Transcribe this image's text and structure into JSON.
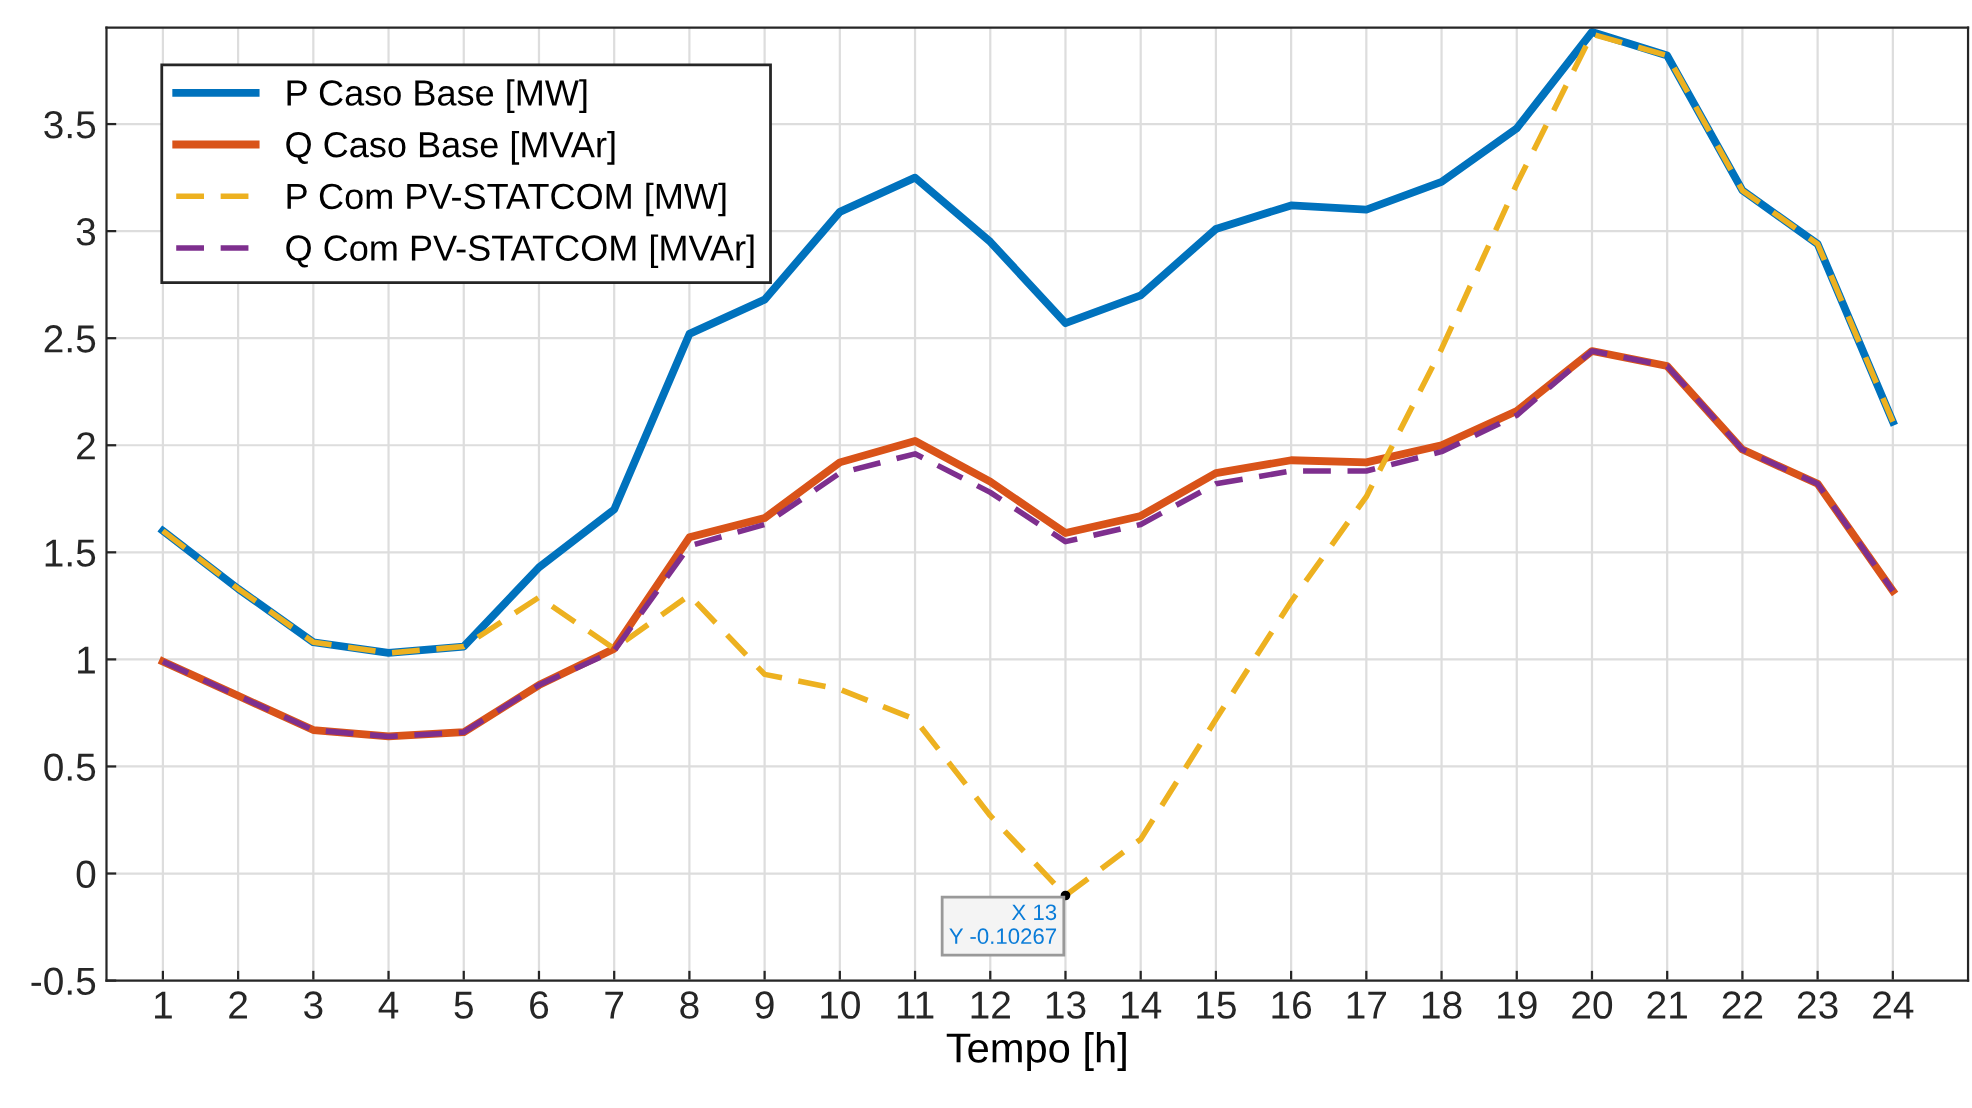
{
  "chart_data": {
    "type": "line",
    "xlabel": "Tempo [h]",
    "x": [
      1,
      2,
      3,
      4,
      5,
      6,
      7,
      8,
      9,
      10,
      11,
      12,
      13,
      14,
      15,
      16,
      17,
      18,
      19,
      20,
      21,
      22,
      23,
      24
    ],
    "xlim": [
      0.25,
      25
    ],
    "xticks": [
      1,
      2,
      3,
      4,
      5,
      6,
      7,
      8,
      9,
      10,
      11,
      12,
      13,
      14,
      15,
      16,
      17,
      18,
      19,
      20,
      21,
      22,
      23,
      24
    ],
    "ylim": [
      -0.5,
      3.95
    ],
    "yticks": [
      -0.5,
      0,
      0.5,
      1,
      1.5,
      2,
      2.5,
      3,
      3.5
    ],
    "grid": true,
    "legend": "top left",
    "series": [
      {
        "name": "P Caso Base [MW]",
        "color": "#0072bd",
        "line_style": "solid",
        "values": [
          1.6,
          1.33,
          1.08,
          1.03,
          1.06,
          1.43,
          1.7,
          2.52,
          2.68,
          3.09,
          3.25,
          2.95,
          2.57,
          2.7,
          3.01,
          3.12,
          3.1,
          3.23,
          3.48,
          3.93,
          3.82,
          3.19,
          2.94,
          2.11
        ]
      },
      {
        "name": "Q Caso Base [MVAr]",
        "color": "#d95319",
        "line_style": "solid",
        "values": [
          0.99,
          0.83,
          0.67,
          0.64,
          0.66,
          0.88,
          1.05,
          1.57,
          1.66,
          1.92,
          2.02,
          1.83,
          1.59,
          1.67,
          1.87,
          1.93,
          1.92,
          2.0,
          2.16,
          2.44,
          2.37,
          1.98,
          1.82,
          1.32
        ]
      },
      {
        "name": "P Com PV-STATCOM [MW]",
        "color": "#edb120",
        "line_style": "dashed",
        "values": [
          1.6,
          1.33,
          1.08,
          1.03,
          1.06,
          1.29,
          1.05,
          1.3,
          0.93,
          0.86,
          0.72,
          0.27,
          -0.10267,
          0.16,
          0.72,
          1.27,
          1.76,
          2.45,
          3.22,
          3.92,
          3.82,
          3.19,
          2.94,
          2.11
        ]
      },
      {
        "name": "Q Com PV-STATCOM [MVAr]",
        "color": "#7e2f8e",
        "line_style": "dashed",
        "values": [
          0.99,
          0.83,
          0.67,
          0.64,
          0.66,
          0.88,
          1.04,
          1.53,
          1.63,
          1.87,
          1.96,
          1.78,
          1.55,
          1.63,
          1.82,
          1.88,
          1.88,
          1.97,
          2.14,
          2.44,
          2.37,
          1.98,
          1.82,
          1.32
        ]
      }
    ],
    "annotations": [
      {
        "text": "X 13\nY -0.10267",
        "x": 13,
        "y": -0.10267
      }
    ]
  }
}
